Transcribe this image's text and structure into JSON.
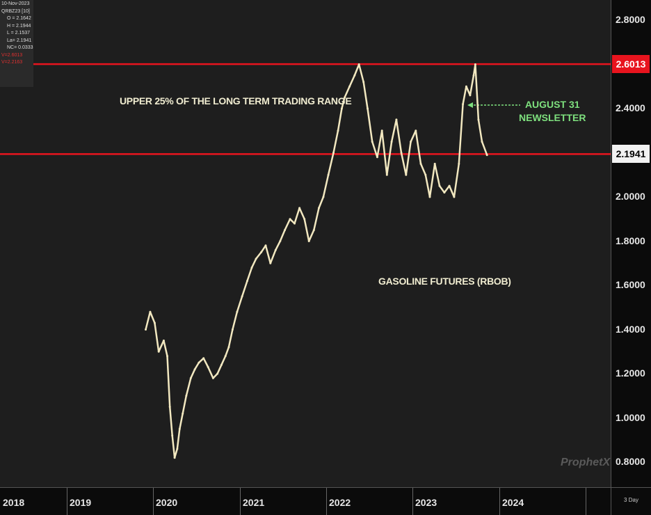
{
  "info": {
    "date": "10-Nov-2023",
    "symbol": "QRBZ23 [10]",
    "open": "O = 2.1642",
    "high": "H = 2.1944",
    "low": "L = 2.1537",
    "last": "La= 2.1941",
    "netchange": "NC= 0.0333",
    "v1": "V=2.6013",
    "v2": "V=2.2163"
  },
  "annotations": {
    "range_text": "UPPER 25% OF THE LONG TERM TRADING RANGE",
    "newsletter_line1": "AUGUST 31",
    "newsletter_line2": "NEWSLETTER",
    "series_label": "GASOLINE FUTURES (RBOB)",
    "logo": "ProphetX",
    "timeframe": "3 Day"
  },
  "colors": {
    "price_line": "#f2e8c0",
    "resistance_line": "#e8141e",
    "newsletter": "#7ee07e",
    "plot_bg": "#1e1e1e"
  },
  "chart_data": {
    "type": "line",
    "ylim": [
      0.7,
      2.9
    ],
    "xlim": [
      "2018-01-01",
      "2025-01-01"
    ],
    "y_ticks": [
      "2.8000",
      "2.4000",
      "2.0000",
      "1.8000",
      "1.6000",
      "1.4000",
      "1.2000",
      "1.0000",
      "0.8000"
    ],
    "y_tick_values": [
      2.8,
      2.4,
      2.0,
      1.8,
      1.6,
      1.4,
      1.2,
      1.0,
      0.8
    ],
    "x_ticks": [
      "2018",
      "2019",
      "2020",
      "2021",
      "2022",
      "2023",
      "2024"
    ],
    "horizontal_lines": [
      {
        "value": 2.6013,
        "label": "2.6013"
      },
      {
        "value": 2.1941,
        "label": "2.1941"
      }
    ],
    "series": [
      {
        "x": [
          "2019-12-01",
          "2019-12-20",
          "2020-01-08",
          "2020-01-25",
          "2020-02-15",
          "2020-03-01",
          "2020-03-12",
          "2020-03-22",
          "2020-04-01",
          "2020-04-12",
          "2020-04-22",
          "2020-05-05",
          "2020-05-20",
          "2020-06-08",
          "2020-06-25",
          "2020-07-12",
          "2020-08-01",
          "2020-08-20",
          "2020-09-10",
          "2020-09-28",
          "2020-10-15",
          "2020-11-01",
          "2020-11-15",
          "2020-12-01",
          "2020-12-20",
          "2021-01-10",
          "2021-02-01",
          "2021-02-20",
          "2021-03-10",
          "2021-04-01",
          "2021-04-20",
          "2021-05-10",
          "2021-06-01",
          "2021-06-20",
          "2021-07-10",
          "2021-08-01",
          "2021-08-20",
          "2021-09-10",
          "2021-10-01",
          "2021-10-20",
          "2021-11-10",
          "2021-12-01",
          "2021-12-20",
          "2022-01-10",
          "2022-02-01",
          "2022-02-20",
          "2022-03-08",
          "2022-03-20",
          "2022-04-10",
          "2022-05-01",
          "2022-05-20",
          "2022-06-08",
          "2022-06-25",
          "2022-07-15",
          "2022-08-05",
          "2022-08-25",
          "2022-09-15",
          "2022-10-05",
          "2022-10-25",
          "2022-11-15",
          "2022-12-05",
          "2022-12-25",
          "2023-01-15",
          "2023-02-05",
          "2023-02-25",
          "2023-03-15",
          "2023-04-05",
          "2023-04-25",
          "2023-05-15",
          "2023-06-05",
          "2023-06-25",
          "2023-07-15",
          "2023-08-01",
          "2023-08-15",
          "2023-08-31",
          "2023-09-15",
          "2023-09-22",
          "2023-10-05",
          "2023-10-20",
          "2023-11-10"
        ],
        "y": [
          1.4,
          1.48,
          1.43,
          1.3,
          1.35,
          1.28,
          1.05,
          0.92,
          0.82,
          0.86,
          0.95,
          1.02,
          1.1,
          1.18,
          1.22,
          1.25,
          1.27,
          1.23,
          1.18,
          1.2,
          1.24,
          1.28,
          1.32,
          1.4,
          1.48,
          1.55,
          1.62,
          1.68,
          1.72,
          1.75,
          1.78,
          1.7,
          1.76,
          1.8,
          1.85,
          1.9,
          1.88,
          1.95,
          1.9,
          1.8,
          1.85,
          1.95,
          2.0,
          2.1,
          2.2,
          2.3,
          2.4,
          2.45,
          2.5,
          2.55,
          2.6,
          2.52,
          2.4,
          2.25,
          2.18,
          2.3,
          2.1,
          2.25,
          2.35,
          2.2,
          2.1,
          2.25,
          2.3,
          2.15,
          2.1,
          2.0,
          2.15,
          2.05,
          2.02,
          2.05,
          2.0,
          2.15,
          2.42,
          2.5,
          2.46,
          2.55,
          2.6,
          2.35,
          2.25,
          2.19
        ]
      }
    ]
  }
}
